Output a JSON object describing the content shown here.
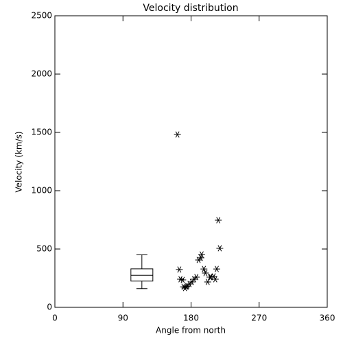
{
  "chart_data": {
    "type": "scatter",
    "title": "Velocity distribution",
    "x_label": "Angle from north",
    "y_label": "Velocity (km/s)",
    "xlim": [
      0,
      360
    ],
    "xticks": [
      0,
      90,
      180,
      270,
      360
    ],
    "ylim": [
      0,
      2500
    ],
    "yticks": [
      0,
      500,
      1000,
      1500,
      2000,
      2500
    ],
    "color": "#000000",
    "series": [
      {
        "x": [
          162,
          164.5,
          166,
          169,
          170,
          172,
          174,
          175,
          178,
          181,
          184,
          187,
          190,
          193,
          194,
          197,
          199,
          202,
          205,
          206,
          210,
          212,
          214,
          216,
          218
        ],
        "values": [
          1482,
          324,
          241,
          235,
          176,
          165,
          176,
          182,
          200,
          218,
          241,
          259,
          406,
          424,
          453,
          329,
          294,
          218,
          259,
          259,
          265,
          241,
          329,
          747,
          506
        ]
      }
    ],
    "box": {
      "position": 115,
      "whisker_low": 160,
      "q1": 225,
      "median": 275,
      "q3": 330,
      "whisker_high": 450
    }
  }
}
